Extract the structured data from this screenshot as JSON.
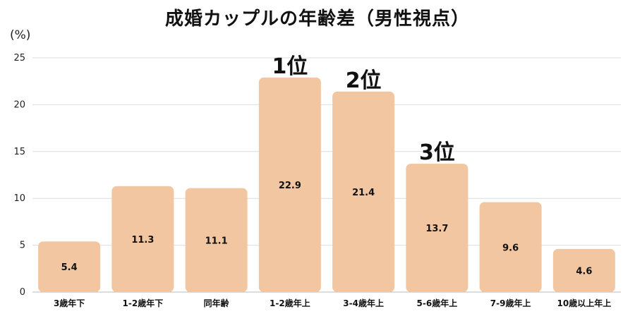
{
  "chart_data": {
    "type": "bar",
    "title": "成婚カップルの年齢差（男性視点）",
    "ylabel": "(%)",
    "categories": [
      "3歳年下",
      "1-2歳年下",
      "同年齢",
      "1-2歳年上",
      "3-4歳年上",
      "5-6歳年上",
      "7-9歳年上",
      "10歳以上年上"
    ],
    "values": [
      5.4,
      11.3,
      11.1,
      22.9,
      21.4,
      13.7,
      9.6,
      4.6
    ],
    "value_labels": [
      "5.4",
      "11.3",
      "11.1",
      "22.9",
      "21.4",
      "13.7",
      "9.6",
      "4.6"
    ],
    "yticks": [
      "0",
      "5",
      "10",
      "15",
      "20",
      "25"
    ],
    "ylim": [
      0,
      25
    ],
    "grid": true,
    "bar_color": "#f2c6a0",
    "grid_color": "#dddddd",
    "rank_labels": [
      {
        "category_index": 3,
        "text": "1位"
      },
      {
        "category_index": 4,
        "text": "2位"
      },
      {
        "category_index": 5,
        "text": "3位"
      }
    ]
  }
}
